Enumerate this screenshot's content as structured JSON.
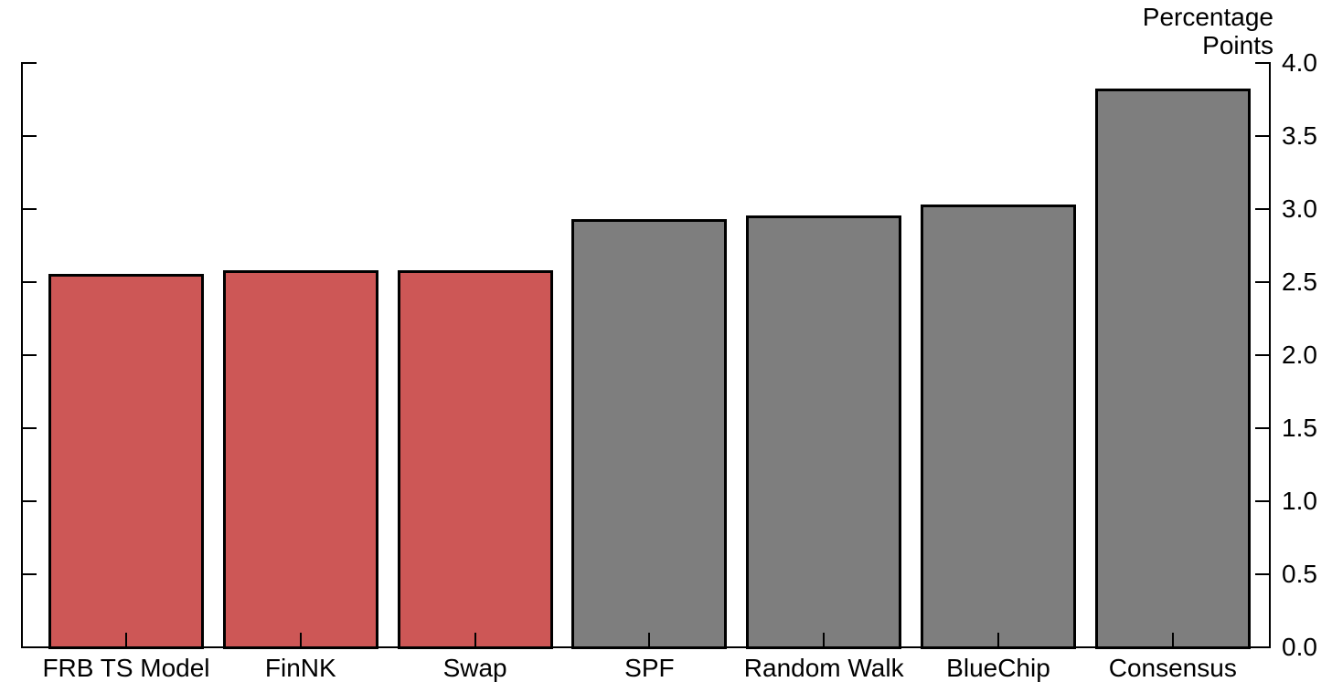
{
  "chart_data": {
    "type": "bar",
    "title": "",
    "xlabel": "",
    "ylabel": "Percentage Points",
    "ylabel_lines": [
      "Percentage",
      "Points"
    ],
    "categories": [
      "FRB TS Model",
      "FinNK",
      "Swap",
      "SPF",
      "Random Walk",
      "BlueChip",
      "Consensus"
    ],
    "values": [
      2.56,
      2.59,
      2.59,
      2.94,
      2.96,
      3.04,
      3.83
    ],
    "bar_colors": [
      "#cd5756",
      "#cd5756",
      "#cd5756",
      "#7e7e7e",
      "#7e7e7e",
      "#7e7e7e",
      "#7e7e7e"
    ],
    "bar_border_color": "#000000",
    "ylim": [
      0.0,
      4.0
    ],
    "yticks": [
      0.0,
      0.5,
      1.0,
      1.5,
      2.0,
      2.5,
      3.0,
      3.5,
      4.0
    ],
    "ytick_labels": [
      "0.0",
      "0.5",
      "1.0",
      "1.5",
      "2.0",
      "2.5",
      "3.0",
      "3.5",
      "4.0"
    ],
    "value_axis_side": "right",
    "tick_direction": "inward",
    "grid": false,
    "legend": null,
    "axis_color": "#000000",
    "background_color": "#ffffff"
  }
}
